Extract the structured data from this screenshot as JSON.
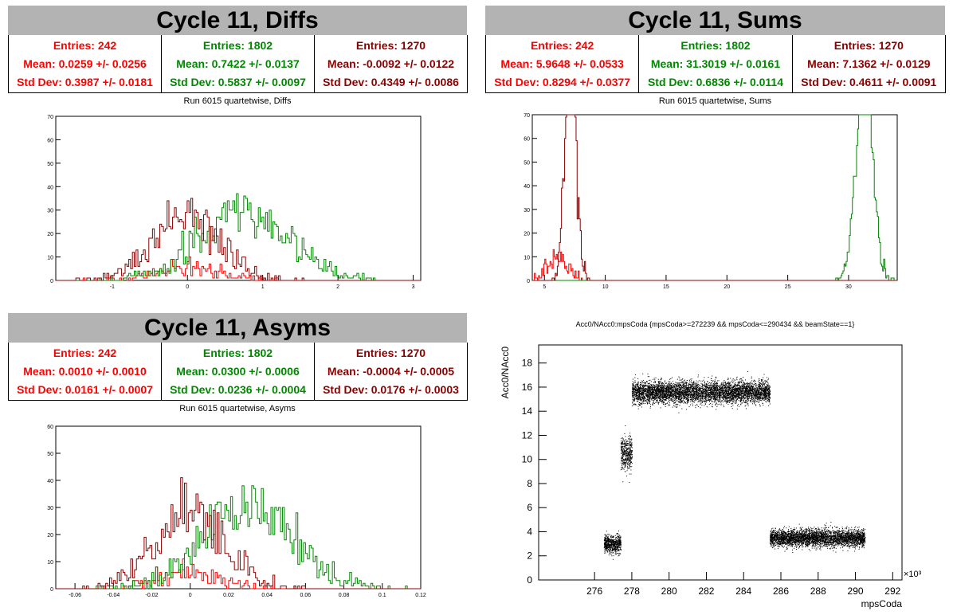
{
  "colors": {
    "red": "#ff0000",
    "green": "#008800",
    "darkred": "#8b0000"
  },
  "panels": {
    "diffs": {
      "title": "Cycle 11, Diffs",
      "subtitle": "Run 6015 quartetwise, Diffs",
      "stats": [
        {
          "entries": "Entries: 242",
          "mean": "Mean: 0.0259 +/- 0.0256",
          "std": "Std Dev: 0.3987 +/- 0.0181"
        },
        {
          "entries": "Entries: 1802",
          "mean": "Mean: 0.7422 +/- 0.0137",
          "std": "Std Dev: 0.5837 +/- 0.0097"
        },
        {
          "entries": "Entries: 1270",
          "mean": "Mean: -0.0092 +/- 0.0122",
          "std": "Std Dev: 0.4349 +/- 0.0086"
        }
      ]
    },
    "sums": {
      "title": "Cycle 11, Sums",
      "subtitle": "Run 6015 quartetwise, Sums",
      "stats": [
        {
          "entries": "Entries: 242",
          "mean": "Mean: 5.9648 +/- 0.0533",
          "std": "Std Dev: 0.8294 +/- 0.0377"
        },
        {
          "entries": "Entries: 1802",
          "mean": "Mean: 31.3019 +/- 0.0161",
          "std": "Std Dev: 0.6836 +/- 0.0114"
        },
        {
          "entries": "Entries: 1270",
          "mean": "Mean: 7.1362 +/- 0.0129",
          "std": "Std Dev: 0.4611 +/- 0.0091"
        }
      ]
    },
    "asyms": {
      "title": "Cycle 11, Asyms",
      "subtitle": "Run 6015 quartetwise, Asyms",
      "stats": [
        {
          "entries": "Entries: 242",
          "mean": "Mean: 0.0010 +/- 0.0010",
          "std": "Std Dev: 0.0161 +/- 0.0007"
        },
        {
          "entries": "Entries: 1802",
          "mean": "Mean: 0.0300 +/- 0.0006",
          "std": "Std Dev: 0.0236 +/- 0.0004"
        },
        {
          "entries": "Entries: 1270",
          "mean": "Mean: -0.0004 +/- 0.0005",
          "std": "Std Dev: 0.0176 +/- 0.0003"
        }
      ]
    },
    "scatter": {
      "title": "Acc0/NAcc0:mpsCoda {mpsCoda>=272239 && mpsCoda<=290434 && beamState==1}"
    }
  },
  "chart_data": [
    {
      "type": "histogram",
      "name": "diffs",
      "xlim": [
        -1.75,
        3.1
      ],
      "ylim": [
        0,
        70
      ],
      "xticks": [
        -1,
        0,
        1,
        2,
        3
      ],
      "yticks": [
        0,
        10,
        20,
        30,
        40,
        50,
        60,
        70
      ],
      "series": [
        {
          "color": "red",
          "entries": 242,
          "mean": 0.0259,
          "std": 0.3987
        },
        {
          "color": "green",
          "entries": 1802,
          "mean": 0.7422,
          "std": 0.5837
        },
        {
          "color": "darkred",
          "entries": 1270,
          "mean": -0.0092,
          "std": 0.4349
        }
      ]
    },
    {
      "type": "histogram",
      "name": "sums",
      "xlim": [
        4,
        34
      ],
      "ylim": [
        0,
        70
      ],
      "xticks": [
        5,
        10,
        15,
        20,
        25,
        30
      ],
      "yticks": [
        0,
        10,
        20,
        30,
        40,
        50,
        60,
        70
      ],
      "series": [
        {
          "color": "red",
          "entries": 242,
          "mean": 5.9648,
          "std": 0.8294
        },
        {
          "color": "green",
          "entries": 1802,
          "mean": 31.3019,
          "std": 0.6836
        },
        {
          "color": "darkred",
          "entries": 1270,
          "mean": 7.1362,
          "std": 0.4611
        }
      ]
    },
    {
      "type": "histogram",
      "name": "asyms",
      "xlim": [
        -0.07,
        0.12
      ],
      "ylim": [
        0,
        60
      ],
      "xticks": [
        -0.06,
        -0.04,
        -0.02,
        0,
        0.02,
        0.04,
        0.06,
        0.08,
        0.1,
        0.12
      ],
      "yticks": [
        0,
        10,
        20,
        30,
        40,
        50,
        60
      ],
      "series": [
        {
          "color": "red",
          "entries": 242,
          "mean": 0.001,
          "std": 0.0161
        },
        {
          "color": "green",
          "entries": 1802,
          "mean": 0.03,
          "std": 0.0236
        },
        {
          "color": "darkred",
          "entries": 1270,
          "mean": -0.0004,
          "std": 0.0176
        }
      ]
    },
    {
      "type": "scatter",
      "name": "acc0",
      "xlabel": "mpsCoda",
      "ylabel": "Acc0/NAcc0",
      "xexp": "×10³",
      "xlim": [
        273,
        292.5
      ],
      "ylim": [
        0,
        19.5
      ],
      "xticks": [
        276,
        278,
        280,
        282,
        284,
        286,
        288,
        290,
        292
      ],
      "yticks": [
        0,
        2,
        4,
        6,
        8,
        10,
        12,
        14,
        16,
        18
      ],
      "clusters": [
        {
          "x": [
            276.5,
            277.4
          ],
          "y_mean": 3.0,
          "y_std": 0.35
        },
        {
          "x": [
            277.4,
            278.0
          ],
          "y_mean": 10.5,
          "y_std": 0.7
        },
        {
          "x": [
            278.0,
            285.4
          ],
          "y_mean": 15.6,
          "y_std": 0.45
        },
        {
          "x": [
            285.4,
            290.5
          ],
          "y_mean": 3.5,
          "y_std": 0.35
        }
      ]
    }
  ]
}
